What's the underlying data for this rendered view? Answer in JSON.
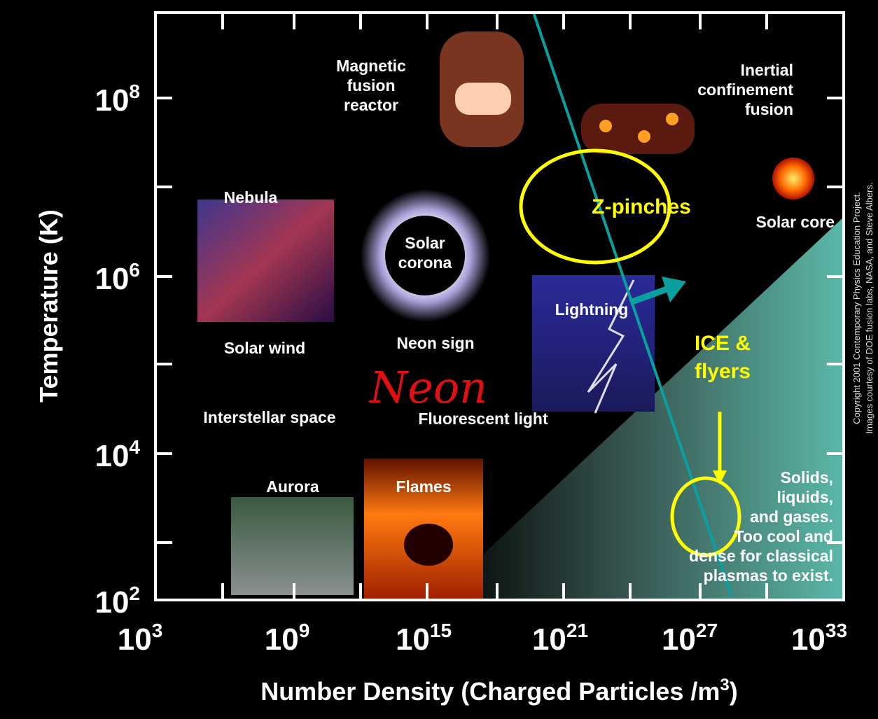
{
  "axes": {
    "y_label": "Temperature (K)",
    "x_label": "Number Density (Charged Particles /m",
    "x_label_exp": "3",
    "x_label_end": ")",
    "y_ticks": [
      {
        "base": "10",
        "exp": "2"
      },
      {
        "base": "10",
        "exp": "4"
      },
      {
        "base": "10",
        "exp": "6"
      },
      {
        "base": "10",
        "exp": "8"
      }
    ],
    "x_ticks": [
      {
        "base": "10",
        "exp": "3"
      },
      {
        "base": "10",
        "exp": "9"
      },
      {
        "base": "10",
        "exp": "15"
      },
      {
        "base": "10",
        "exp": "21"
      },
      {
        "base": "10",
        "exp": "27"
      },
      {
        "base": "10",
        "exp": "33"
      }
    ]
  },
  "regions": [
    {
      "lines": [
        "Magnetic",
        "fusion",
        "reactor"
      ]
    },
    {
      "lines": [
        "Inertial",
        "confinement",
        "fusion"
      ]
    },
    {
      "lines": [
        "Nebula"
      ]
    },
    {
      "lines": [
        "Solar",
        "corona"
      ]
    },
    {
      "lines": [
        "Solar core"
      ]
    },
    {
      "lines": [
        "Lightning"
      ]
    },
    {
      "lines": [
        "Solar wind"
      ]
    },
    {
      "lines": [
        "Neon sign"
      ]
    },
    {
      "lines": [
        "Neon"
      ]
    },
    {
      "lines": [
        "Interstellar space"
      ]
    },
    {
      "lines": [
        "Fluorescent light"
      ]
    },
    {
      "lines": [
        "Aurora"
      ]
    },
    {
      "lines": [
        "Flames"
      ]
    },
    {
      "lines": [
        "Solids,",
        "liquids,",
        "and gases.",
        "Too cool and",
        "dense for classical",
        "plasmas to exist."
      ]
    }
  ],
  "annotations": [
    {
      "lines": [
        "Z-pinches"
      ]
    },
    {
      "lines": [
        "ICE &",
        "flyers"
      ]
    }
  ],
  "copyright": [
    "Copyright 2001 Contemporary Physics Education Project.",
    "Images courtesy of DOE fusion labs, NASA, and Steve Albers."
  ]
}
